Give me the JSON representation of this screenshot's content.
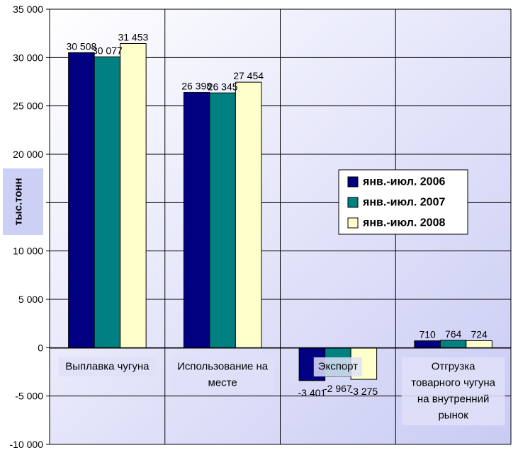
{
  "chart_data": {
    "type": "bar",
    "ylabel": "тыс.тонн",
    "ylim": [
      -10000,
      35000
    ],
    "yticks": [
      35000,
      30000,
      25000,
      20000,
      15000,
      10000,
      5000,
      0,
      -5000,
      -10000
    ],
    "ytick_labels": [
      "35 000",
      "30 000",
      "25 000",
      "20 000",
      "",
      "10 000",
      "5 000",
      "0",
      "-5 000",
      "-10 000"
    ],
    "categories": [
      "Выплавка чугуна",
      "Использование на месте",
      "Экспорт",
      "Отгрузка товарного чугуна на внутренний рынок"
    ],
    "category_lines": [
      [
        "Выплавка чугуна"
      ],
      [
        "Использование на",
        "месте"
      ],
      [
        "Экспорт"
      ],
      [
        "Отгрузка",
        "товарного чугуна",
        "на внутренний",
        "рынок"
      ]
    ],
    "series": [
      {
        "name": "янв.-июл. 2006",
        "color": "#000080",
        "values": [
          30508,
          26398,
          -3401,
          710
        ],
        "labels": [
          "30 508",
          "26 398",
          "-3 401",
          "710"
        ]
      },
      {
        "name": "янв.-июл. 2007",
        "color": "#008080",
        "values": [
          30077,
          26345,
          -2967,
          764
        ],
        "labels": [
          "30 077",
          "26 345",
          "-2 967",
          "764"
        ]
      },
      {
        "name": "янв.-июл. 2008",
        "color": "#FFFFCC",
        "values": [
          31453,
          27454,
          -3275,
          724
        ],
        "labels": [
          "31 453",
          "27 454",
          "-3 275",
          "724"
        ]
      }
    ],
    "grid": true,
    "legend": "right"
  }
}
